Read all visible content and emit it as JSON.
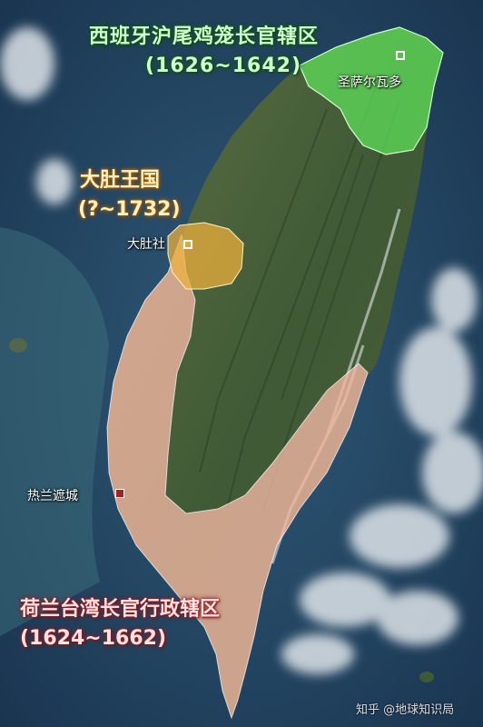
{
  "regions": {
    "spanish": {
      "name": "西班牙沪尾鸡笼长官辖区",
      "years": "(1626~1642)",
      "color": "#5fe35a"
    },
    "dadu": {
      "name": "大肚王国",
      "years": "(?~1732)",
      "color": "#f0b23c"
    },
    "dutch": {
      "name": "荷兰台湾长官行政辖区",
      "years": "(1624~1662)",
      "color": "#f4b7a4"
    }
  },
  "places": {
    "santiago": "圣萨尔瓦多",
    "dadu_she": "大肚社",
    "zeelandia": "热兰遮城"
  },
  "marker_colors": {
    "open": "#ffffff",
    "filled": "#a52020"
  },
  "watermark": "知乎 @地球知识局"
}
